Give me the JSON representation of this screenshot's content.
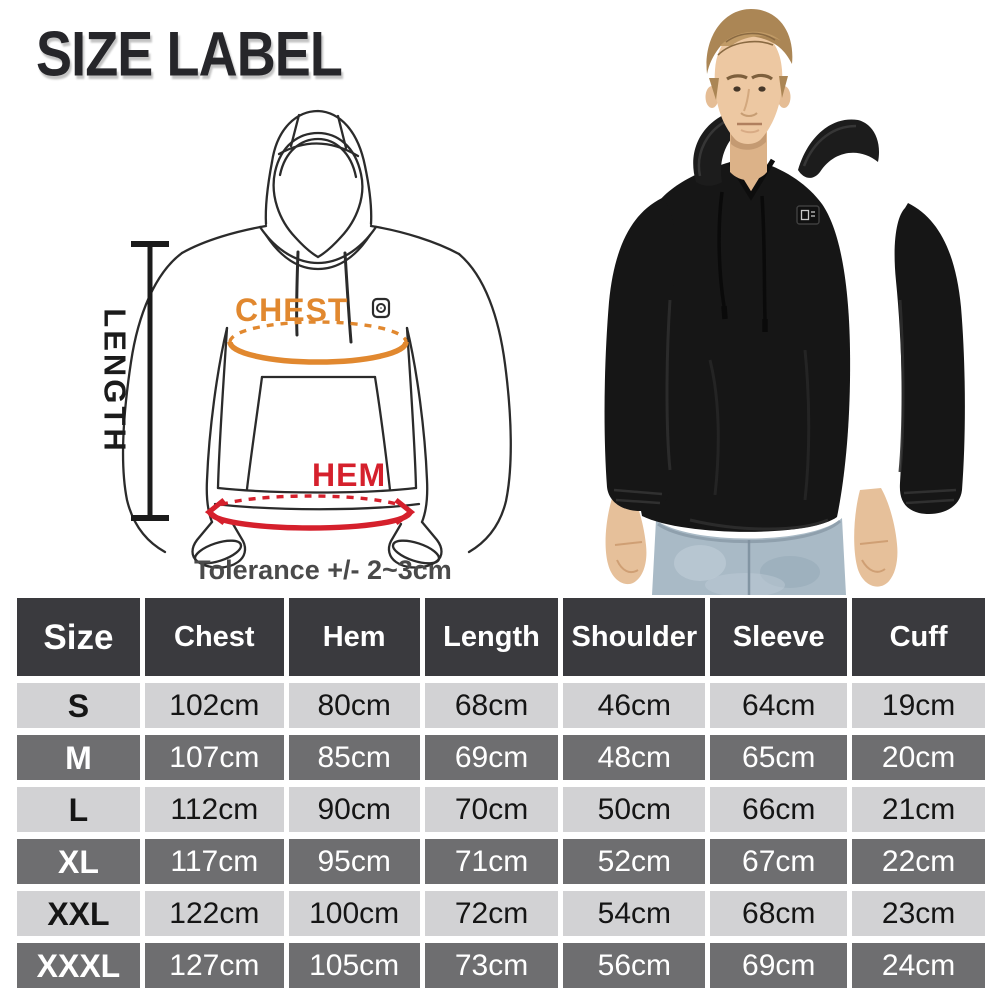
{
  "title": "SIZE LABEL",
  "diagram": {
    "length_label": "LENGTH",
    "chest_label": "CHEST",
    "hem_label": "HEM",
    "tolerance_note": "Tolerance +/- 2~3cm"
  },
  "photo": {
    "alt": "Man modeling a black pullover hoodie with drawstrings and chest logo patch, wearing light blue jeans"
  },
  "colors": {
    "chest_accent": "#E1882F",
    "hem_accent": "#D5202C",
    "diagram_line": "#2b2b2b",
    "table_header_bg": "#3A3A3E",
    "table_row_light_bg": "#D2D2D4",
    "table_row_dark_bg": "#6E6E70"
  },
  "chart_data": {
    "type": "table",
    "title": "Hoodie size chart (cm)",
    "columns": [
      "Size",
      "Chest",
      "Hem",
      "Length",
      "Shoulder",
      "Sleeve",
      "Cuff"
    ],
    "rows": [
      [
        "S",
        "102cm",
        "80cm",
        "68cm",
        "46cm",
        "64cm",
        "19cm"
      ],
      [
        "M",
        "107cm",
        "85cm",
        "69cm",
        "48cm",
        "65cm",
        "20cm"
      ],
      [
        "L",
        "112cm",
        "90cm",
        "70cm",
        "50cm",
        "66cm",
        "21cm"
      ],
      [
        "XL",
        "117cm",
        "95cm",
        "71cm",
        "52cm",
        "67cm",
        "22cm"
      ],
      [
        "XXL",
        "122cm",
        "100cm",
        "72cm",
        "54cm",
        "68cm",
        "23cm"
      ],
      [
        "XXXL",
        "127cm",
        "105cm",
        "73cm",
        "56cm",
        "69cm",
        "24cm"
      ]
    ]
  }
}
